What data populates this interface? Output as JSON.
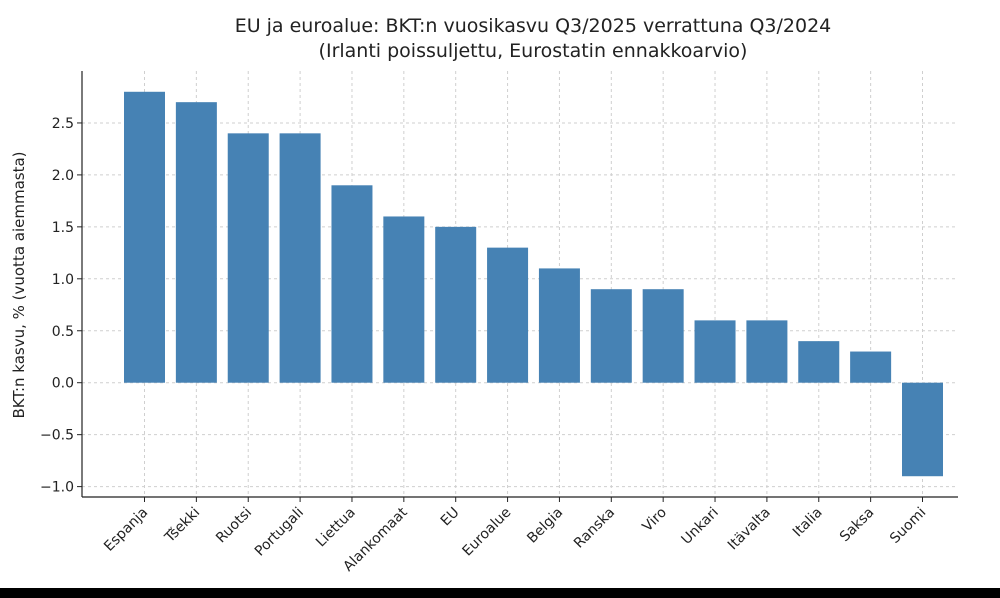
{
  "chart_data": {
    "type": "bar",
    "title": "EU ja euroalue: BKT:n vuosikasvu Q3/2025 verrattuna Q3/2024",
    "subtitle": "(Irlanti poissuljettu, Eurostatin ennakkoarvio)",
    "xlabel": "",
    "ylabel": "BKT:n kasvu, % (vuotta aiemmasta)",
    "categories": [
      "Espanja",
      "Tšekki",
      "Ruotsi",
      "Portugali",
      "Liettua",
      "Alankomaat",
      "EU",
      "Euroalue",
      "Belgia",
      "Ranska",
      "Viro",
      "Unkari",
      "Itävalta",
      "Italia",
      "Saksa",
      "Suomi"
    ],
    "values": [
      2.8,
      2.7,
      2.4,
      2.4,
      1.9,
      1.6,
      1.5,
      1.3,
      1.1,
      0.9,
      0.9,
      0.6,
      0.6,
      0.4,
      0.3,
      -0.9
    ],
    "ylim": [
      -1.1,
      3.0
    ],
    "yticks": [
      -1.0,
      -0.5,
      0.0,
      0.5,
      1.0,
      1.5,
      2.0,
      2.5
    ],
    "ytick_labels": [
      "−1.0",
      "−0.5",
      "0.0",
      "0.5",
      "1.0",
      "1.5",
      "2.0",
      "2.5"
    ],
    "grid": true,
    "bar_color": "#4682b4"
  }
}
